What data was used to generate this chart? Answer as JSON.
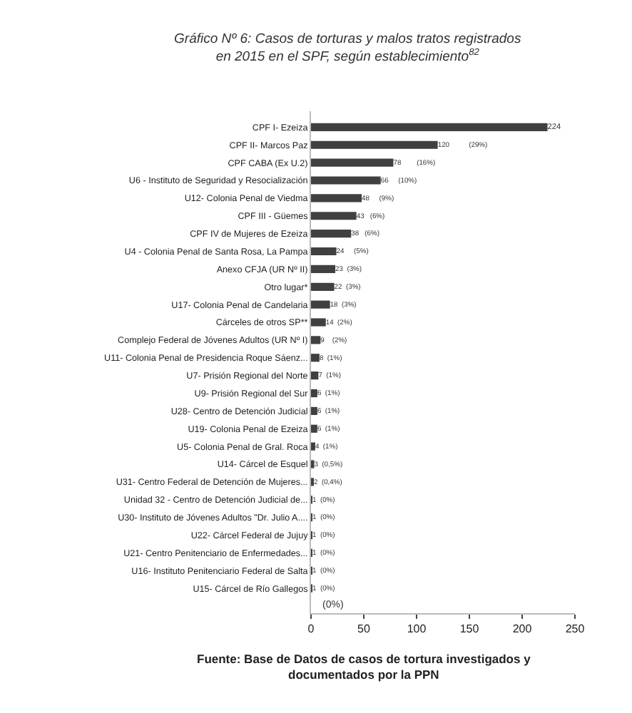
{
  "chart_data": {
    "type": "bar",
    "orientation": "horizontal",
    "title": "Gráfico Nº 6: Casos de torturas y malos tratos registrados en 2015 en el SPF, según establecimiento$^{82}$",
    "categories": [
      "CPF I- Ezeiza",
      "CPF II- Marcos Paz",
      "CPF CABA (Ex U.2)",
      "U6 - Instituto de Seguridad y Resocialización",
      "U12- Colonia Penal de Viedma",
      "CPF III - Güemes",
      "CPF IV de Mujeres de Ezeiza",
      "U4 - Colonia Penal de Santa Rosa, La Pampa",
      "Anexo CFJA (UR Nº II)",
      "Otro lugar*",
      "U17- Colonia Penal de Candelaria",
      "Cárceles de otros SP**",
      "Complejo Federal de Jóvenes Adultos (UR Nº I)",
      "U11- Colonia Penal de Presidencia Roque Sáenz...",
      "U7- Prisión Regional del Norte",
      "U9- Prisión Regional del Sur",
      "U28- Centro de Detención Judicial",
      "U19- Colonia Penal de Ezeiza",
      "U5- Colonia Penal de Gral. Roca",
      "U14- Cárcel de Esquel",
      "U31- Centro Federal de Detención de Mujeres...",
      "Unidad 32 - Centro de Detención Judicial de...",
      "U30- Instituto de Jóvenes Adultos \"Dr. Julio A....",
      "U22- Cárcel Federal de Jujuy",
      "U21- Centro Penitenciario de Enfermedades...",
      "U16- Instituto Penitenciario Federal de Salta",
      "U15- Cárcel de Río Gallegos"
    ],
    "values": [
      224,
      120,
      78,
      66,
      48,
      43,
      38,
      24,
      23,
      22,
      18,
      14,
      9,
      8,
      7,
      6,
      6,
      6,
      4,
      3,
      2,
      1,
      1,
      1,
      1,
      1,
      1
    ],
    "value_labels": [
      "224",
      "120          (29%)",
      "78        (16%)",
      "66     (10%)",
      "48     (9%)",
      "43   (6%)",
      "38   (6%)",
      "24     (5%)",
      "23  (3%)",
      "22  (3%)",
      "18  (3%)",
      "14  (2%)",
      "9    (2%)",
      "8  (1%)",
      "7  (1%)",
      "6  (1%)",
      "6  (1%)",
      "6  (1%)",
      "4  (1%)",
      "3  (0,5%)",
      "2  (0,4%)",
      "1  (0%)",
      "1  (0%)",
      "1  (0%)",
      "1  (0%)",
      "1  (0%)",
      "1  (0%)"
    ],
    "color": "#404040",
    "xlim": [
      0,
      250
    ],
    "xticks": [
      0,
      50,
      100,
      150,
      200,
      250
    ],
    "grid": false,
    "legend": false,
    "annotations": [
      "(0%)",
      "Fuente: Base de Datos de casos de tortura investigados y documentados por la PPN"
    ]
  }
}
